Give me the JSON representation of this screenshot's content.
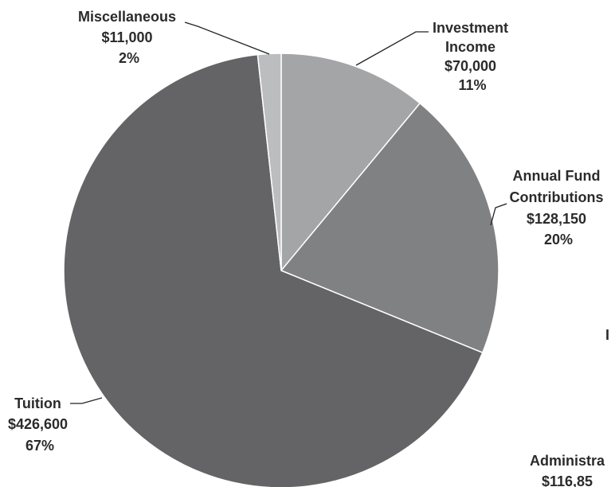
{
  "chart_data": {
    "type": "pie",
    "title": "",
    "slices": [
      {
        "name": "Investment Income",
        "label_lines": [
          "Investment",
          "Income"
        ],
        "value_label": "$70,000",
        "value": 70000,
        "percent_label": "11%",
        "color": "#a4a5a7"
      },
      {
        "name": "Annual Fund Contributions",
        "label_lines": [
          "Annual Fund",
          "Contributions"
        ],
        "value_label": "$128,150",
        "value": 128150,
        "percent_label": "20%",
        "color": "#808183"
      },
      {
        "name": "Tuition",
        "label_lines": [
          "Tuition"
        ],
        "value_label": "$426,600",
        "value": 426600,
        "percent_label": "67%",
        "color": "#646466"
      },
      {
        "name": "Miscellaneous",
        "label_lines": [
          "Miscellaneous"
        ],
        "value_label": "$11,000",
        "value": 11000,
        "percent_label": "2%",
        "color": "#bcbdbf"
      }
    ],
    "partial_labels": [
      "Administra",
      "$116,85",
      "I"
    ]
  }
}
